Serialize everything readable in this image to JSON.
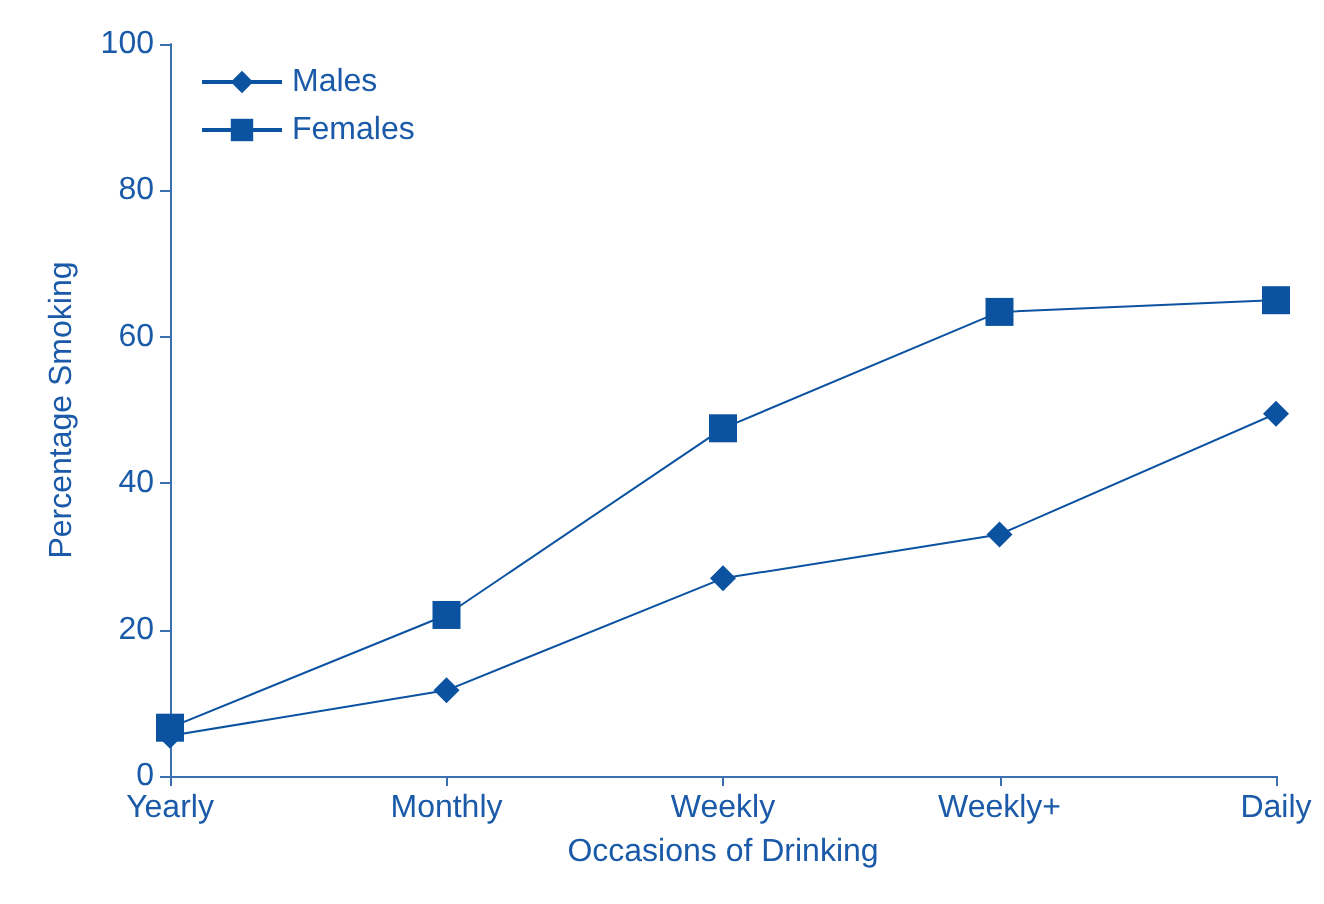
{
  "chart_data": {
    "type": "line",
    "xlabel": "Occasions of Drinking",
    "ylabel": "Percentage Smoking",
    "categories": [
      "Yearly",
      "Monthly",
      "Weekly",
      "Weekly+",
      "Daily"
    ],
    "series": [
      {
        "name": "Males",
        "color": "#0b52a0",
        "marker": "diamond",
        "values": [
          5.5,
          11.7,
          27,
          33,
          49.5
        ]
      },
      {
        "name": "Females",
        "color": "#0b52a0",
        "marker": "square",
        "values": [
          6.6,
          22,
          47.5,
          63.4,
          65
        ]
      }
    ],
    "ylim": [
      0,
      100
    ],
    "yticks": [
      0,
      20,
      40,
      60,
      80,
      100
    ],
    "grid": false,
    "legend": "top left",
    "line_style": "solid"
  }
}
